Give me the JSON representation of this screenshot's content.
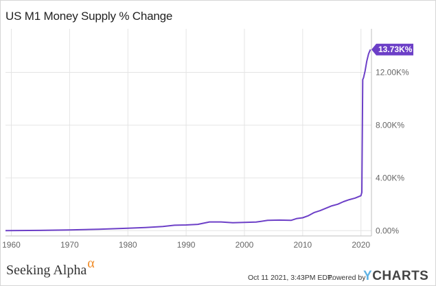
{
  "chart_data": {
    "type": "line",
    "title": "US M1 Money Supply % Change",
    "xlabel": "",
    "ylabel": "",
    "x_ticks": [
      "1960",
      "1970",
      "1980",
      "1990",
      "2000",
      "2010",
      "2020"
    ],
    "x_tick_values": [
      1960,
      1970,
      1980,
      1990,
      2000,
      2010,
      2020
    ],
    "y_ticks": [
      "0.00%",
      "4.00K%",
      "8.00K%",
      "12.00K%"
    ],
    "y_tick_values": [
      0,
      4000,
      8000,
      12000
    ],
    "xlim": [
      1959,
      2021.8
    ],
    "ylim": [
      -400,
      15300
    ],
    "grid": true,
    "series": [
      {
        "color": "#6c3fc7",
        "x": [
          1959,
          1965,
          1970,
          1975,
          1980,
          1983,
          1986,
          1988,
          1990,
          1992,
          1994,
          1996,
          1998,
          2000,
          2002,
          2004,
          2006,
          2008,
          2009,
          2010,
          2011,
          2012,
          2013,
          2014,
          2015,
          2016,
          2017,
          2018,
          2019,
          2020.0,
          2020.15,
          2020.3,
          2020.45,
          2020.7,
          2021.0,
          2021.3,
          2021.62
        ],
        "values": [
          0,
          20,
          60,
          110,
          190,
          240,
          310,
          410,
          430,
          480,
          660,
          660,
          600,
          630,
          650,
          780,
          800,
          780,
          920,
          980,
          1140,
          1380,
          1520,
          1700,
          1880,
          2000,
          2200,
          2350,
          2470,
          2650,
          2900,
          11450,
          11600,
          12100,
          12850,
          13400,
          13730
        ]
      }
    ],
    "last_value_label": "13.73K%"
  },
  "footer": {
    "brand": "Seeking Alpha",
    "brand_mark": "α",
    "date": "Oct 11 2021, 3:43PM EDT.",
    "powered": "Powered by",
    "ycharts_y": "Y",
    "ycharts_rest": "CHARTS"
  },
  "colors": {
    "line": "#6c3fc7",
    "grid": "#e4e4e4",
    "callout": "#6c3fc7",
    "alpha": "#f08a24",
    "ycharts_y": "#5fb2e3"
  }
}
